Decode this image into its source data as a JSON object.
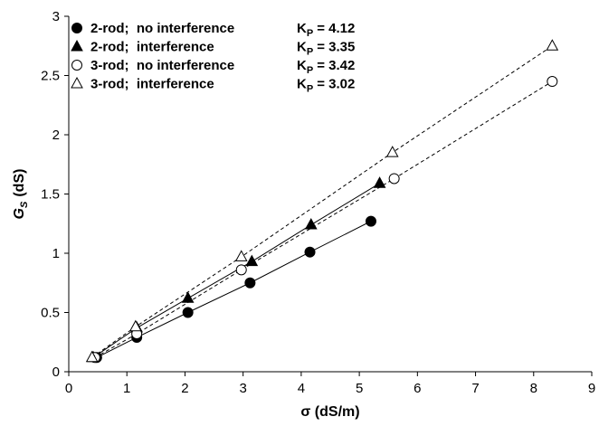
{
  "chart_data": {
    "type": "scatter",
    "xlabel": "σ (dS/m)",
    "ylabel": {
      "base": "G",
      "sub": "S",
      "text": "(dS)"
    },
    "xlim": [
      0,
      9
    ],
    "xticks": [
      0,
      1,
      2,
      3,
      4,
      5,
      6,
      7,
      8,
      9
    ],
    "ylim": [
      0,
      3
    ],
    "yticks": [
      0,
      0.5,
      1,
      1.5,
      2,
      2.5,
      3
    ],
    "series": [
      {
        "name": "2-rod;  no interference",
        "color": "#000000",
        "marker": "circle",
        "filled": true,
        "dashed": false,
        "kp": {
          "base": "K",
          "sub": "P",
          "text": "= 4.12"
        },
        "x": [
          0.48,
          1.17,
          2.05,
          3.12,
          4.15,
          5.2
        ],
        "values": [
          0.12,
          0.29,
          0.5,
          0.75,
          1.01,
          1.27
        ]
      },
      {
        "name": "2-rod;  interference",
        "color": "#000000",
        "marker": "triangle",
        "filled": true,
        "dashed": false,
        "kp": {
          "base": "K",
          "sub": "P",
          "text": "= 3.35"
        },
        "x": [
          0.42,
          1.17,
          2.05,
          3.15,
          4.17,
          5.35
        ],
        "values": [
          0.12,
          0.37,
          0.62,
          0.93,
          1.24,
          1.59
        ]
      },
      {
        "name": "3-rod;  no interference",
        "color": "#000000",
        "marker": "circle",
        "filled": false,
        "dashed": true,
        "kp": {
          "base": "K",
          "sub": "P",
          "text": "= 3.42"
        },
        "x": [
          0.45,
          1.17,
          2.97,
          5.6,
          8.32
        ],
        "values": [
          0.12,
          0.32,
          0.86,
          1.63,
          2.45
        ]
      },
      {
        "name": "3-rod;  interference",
        "color": "#000000",
        "marker": "triangle",
        "filled": false,
        "dashed": true,
        "kp": {
          "base": "K",
          "sub": "P",
          "text": "= 3.02"
        },
        "x": [
          0.4,
          1.15,
          2.97,
          5.57,
          8.32
        ],
        "values": [
          0.12,
          0.38,
          0.97,
          1.85,
          2.75
        ]
      }
    ]
  }
}
